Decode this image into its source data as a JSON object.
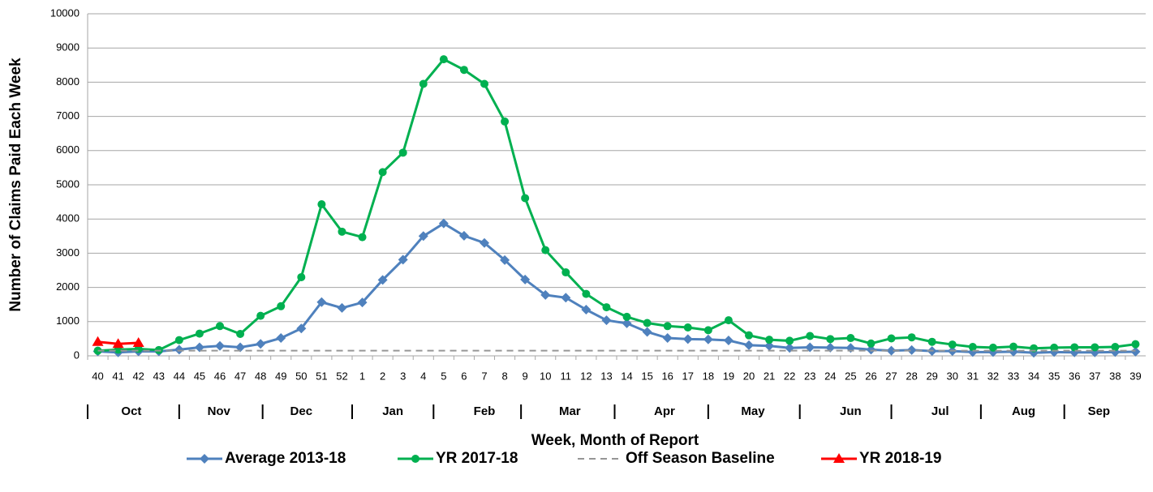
{
  "chart_data": {
    "type": "line",
    "y_label": "Number of Claims Paid Each Week",
    "x_label": "Week, Month of Report",
    "categories": [
      "40",
      "41",
      "42",
      "43",
      "44",
      "45",
      "46",
      "47",
      "48",
      "49",
      "50",
      "51",
      "52",
      "1",
      "2",
      "3",
      "4",
      "5",
      "6",
      "7",
      "8",
      "9",
      "10",
      "11",
      "12",
      "13",
      "14",
      "15",
      "16",
      "17",
      "18",
      "19",
      "20",
      "21",
      "22",
      "23",
      "24",
      "25",
      "26",
      "27",
      "28",
      "29",
      "30",
      "31",
      "32",
      "33",
      "34",
      "35",
      "36",
      "37",
      "38",
      "39"
    ],
    "months": [
      "Oct",
      "Nov",
      "Dec",
      "Jan",
      "Feb",
      "Mar",
      "Apr",
      "May",
      "Jun",
      "Jul",
      "Aug",
      "Sep"
    ],
    "ylim": [
      0,
      10000
    ],
    "yticks": [
      0,
      1000,
      2000,
      3000,
      4000,
      5000,
      6000,
      7000,
      8000,
      9000,
      10000
    ],
    "grid": true,
    "legend": "bottom",
    "series": [
      {
        "name": "Average 2013-18",
        "color": "#4f81bd",
        "marker": "diamond",
        "values": [
          130,
          100,
          130,
          130,
          180,
          250,
          290,
          250,
          350,
          520,
          800,
          1570,
          1400,
          1560,
          2220,
          2810,
          3500,
          3870,
          3510,
          3300,
          2800,
          2230,
          1780,
          1700,
          1350,
          1040,
          950,
          700,
          520,
          490,
          480,
          450,
          310,
          290,
          230,
          250,
          240,
          230,
          180,
          150,
          170,
          140,
          140,
          110,
          110,
          120,
          90,
          110,
          100,
          100,
          110,
          120
        ]
      },
      {
        "name": "YR 2017-18",
        "color": "#00b050",
        "marker": "circle",
        "values": [
          150,
          180,
          200,
          170,
          460,
          650,
          870,
          640,
          1170,
          1450,
          2300,
          4430,
          3630,
          3470,
          5370,
          5940,
          7950,
          8670,
          8360,
          7950,
          6850,
          4610,
          3090,
          2440,
          1810,
          1420,
          1140,
          960,
          870,
          830,
          750,
          1040,
          600,
          470,
          440,
          580,
          490,
          520,
          360,
          510,
          540,
          410,
          330,
          260,
          240,
          270,
          220,
          240,
          250,
          250,
          260,
          340
        ]
      },
      {
        "name": "Off Season Baseline",
        "color": "#969696",
        "marker": "none",
        "dash": true,
        "values": [
          150,
          150,
          150,
          150,
          150,
          150,
          150,
          150,
          150,
          150,
          150,
          150,
          150,
          150,
          150,
          150,
          150,
          150,
          150,
          150,
          150,
          150,
          150,
          150,
          150,
          150,
          150,
          150,
          150,
          150,
          150,
          150,
          150,
          150,
          150,
          150,
          150,
          150,
          150,
          150,
          150,
          150,
          150,
          150,
          150,
          150,
          150,
          150,
          150,
          150,
          150,
          150
        ]
      },
      {
        "name": "YR 2018-19",
        "color": "#ff0000",
        "marker": "triangle",
        "values": [
          410,
          350,
          380,
          null,
          null,
          null,
          null,
          null,
          null,
          null,
          null,
          null,
          null,
          null,
          null,
          null,
          null,
          null,
          null,
          null,
          null,
          null,
          null,
          null,
          null,
          null,
          null,
          null,
          null,
          null,
          null,
          null,
          null,
          null,
          null,
          null,
          null,
          null,
          null,
          null,
          null,
          null,
          null,
          null,
          null,
          null,
          null,
          null,
          null,
          null,
          null,
          null
        ]
      }
    ]
  }
}
